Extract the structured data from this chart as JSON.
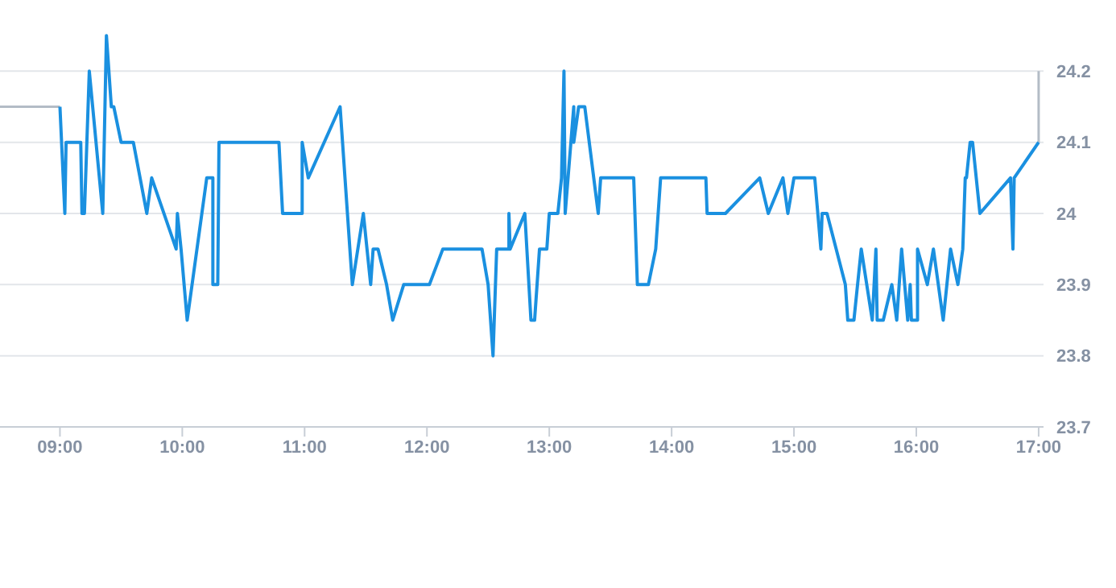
{
  "chart_data": {
    "type": "line",
    "xlim": [
      8.51,
      17.04
    ],
    "ylim": [
      23.7,
      24.3
    ],
    "xticks": [
      {
        "value": 9,
        "label": "09:00"
      },
      {
        "value": 10,
        "label": "10:00"
      },
      {
        "value": 11,
        "label": "11:00"
      },
      {
        "value": 12,
        "label": "12:00"
      },
      {
        "value": 13,
        "label": "13:00"
      },
      {
        "value": 14,
        "label": "14:00"
      },
      {
        "value": 15,
        "label": "15:00"
      },
      {
        "value": 16,
        "label": "16:00"
      },
      {
        "value": 17,
        "label": "17:00"
      }
    ],
    "yticks": [
      23.7,
      23.8,
      23.9,
      24,
      24.1,
      24.2
    ],
    "grid": "y",
    "marker": "none",
    "line_style": "solid",
    "series": [
      {
        "color": "#b3bcc6",
        "x": [
          8.51,
          9.0,
          16.9,
          17.0,
          17.0
        ],
        "values": [
          24.15,
          24.15,
          null,
          24.2,
          24.1
        ]
      },
      {
        "color": "#1a90e0",
        "x": [
          9.0,
          9.04,
          9.05,
          9.17,
          9.18,
          9.2,
          9.24,
          9.35,
          9.38,
          9.42,
          9.44,
          9.5,
          9.6,
          9.71,
          9.75,
          9.95,
          9.96,
          9.99,
          10.04,
          10.2,
          10.25,
          10.25,
          10.29,
          10.3,
          10.79,
          10.82,
          10.98,
          10.98,
          11.03,
          11.29,
          11.39,
          11.48,
          11.54,
          11.56,
          11.6,
          11.67,
          11.72,
          11.81,
          12.02,
          12.13,
          12.45,
          12.5,
          12.54,
          12.57,
          12.67,
          12.67,
          12.68,
          12.8,
          12.85,
          12.88,
          12.92,
          12.98,
          13.0,
          13.07,
          13.1,
          13.12,
          13.13,
          13.2,
          13.2,
          13.24,
          13.29,
          13.4,
          13.42,
          13.69,
          13.72,
          13.81,
          13.87,
          13.91,
          14.28,
          14.29,
          14.44,
          14.72,
          14.79,
          14.91,
          14.95,
          15.0,
          15.17,
          15.22,
          15.23,
          15.27,
          15.42,
          15.44,
          15.49,
          15.55,
          15.64,
          15.67,
          15.68,
          15.73,
          15.8,
          15.84,
          15.88,
          15.93,
          15.95,
          15.96,
          16.01,
          16.01,
          16.09,
          16.14,
          16.22,
          16.28,
          16.34,
          16.38,
          16.4,
          16.41,
          16.44,
          16.46,
          16.52,
          16.77,
          16.79,
          16.8,
          17.0
        ],
        "values": [
          24.15,
          24.0,
          24.1,
          24.1,
          24.0,
          24.0,
          24.2,
          24.0,
          24.25,
          24.15,
          24.15,
          24.1,
          24.1,
          24.0,
          24.05,
          23.95,
          24.0,
          23.95,
          23.85,
          24.05,
          24.05,
          23.9,
          23.9,
          24.1,
          24.1,
          24.0,
          24.0,
          24.1,
          24.05,
          24.15,
          23.9,
          24.0,
          23.9,
          23.95,
          23.95,
          23.9,
          23.85,
          23.9,
          23.9,
          23.95,
          23.95,
          23.9,
          23.8,
          23.95,
          23.95,
          24.0,
          23.95,
          24.0,
          23.85,
          23.85,
          23.95,
          23.95,
          24.0,
          24.0,
          24.05,
          24.2,
          24.0,
          24.15,
          24.1,
          24.15,
          24.15,
          24.0,
          24.05,
          24.05,
          23.9,
          23.9,
          23.95,
          24.05,
          24.05,
          24.0,
          24.0,
          24.05,
          24.0,
          24.05,
          24.0,
          24.05,
          24.05,
          23.95,
          24.0,
          24.0,
          23.9,
          23.85,
          23.85,
          23.95,
          23.85,
          23.95,
          23.85,
          23.85,
          23.9,
          23.85,
          23.95,
          23.85,
          23.9,
          23.85,
          23.85,
          23.95,
          23.9,
          23.95,
          23.85,
          23.95,
          23.9,
          23.95,
          24.05,
          24.05,
          24.1,
          24.1,
          24.0,
          24.05,
          23.95,
          24.05,
          24.1
        ]
      }
    ]
  }
}
